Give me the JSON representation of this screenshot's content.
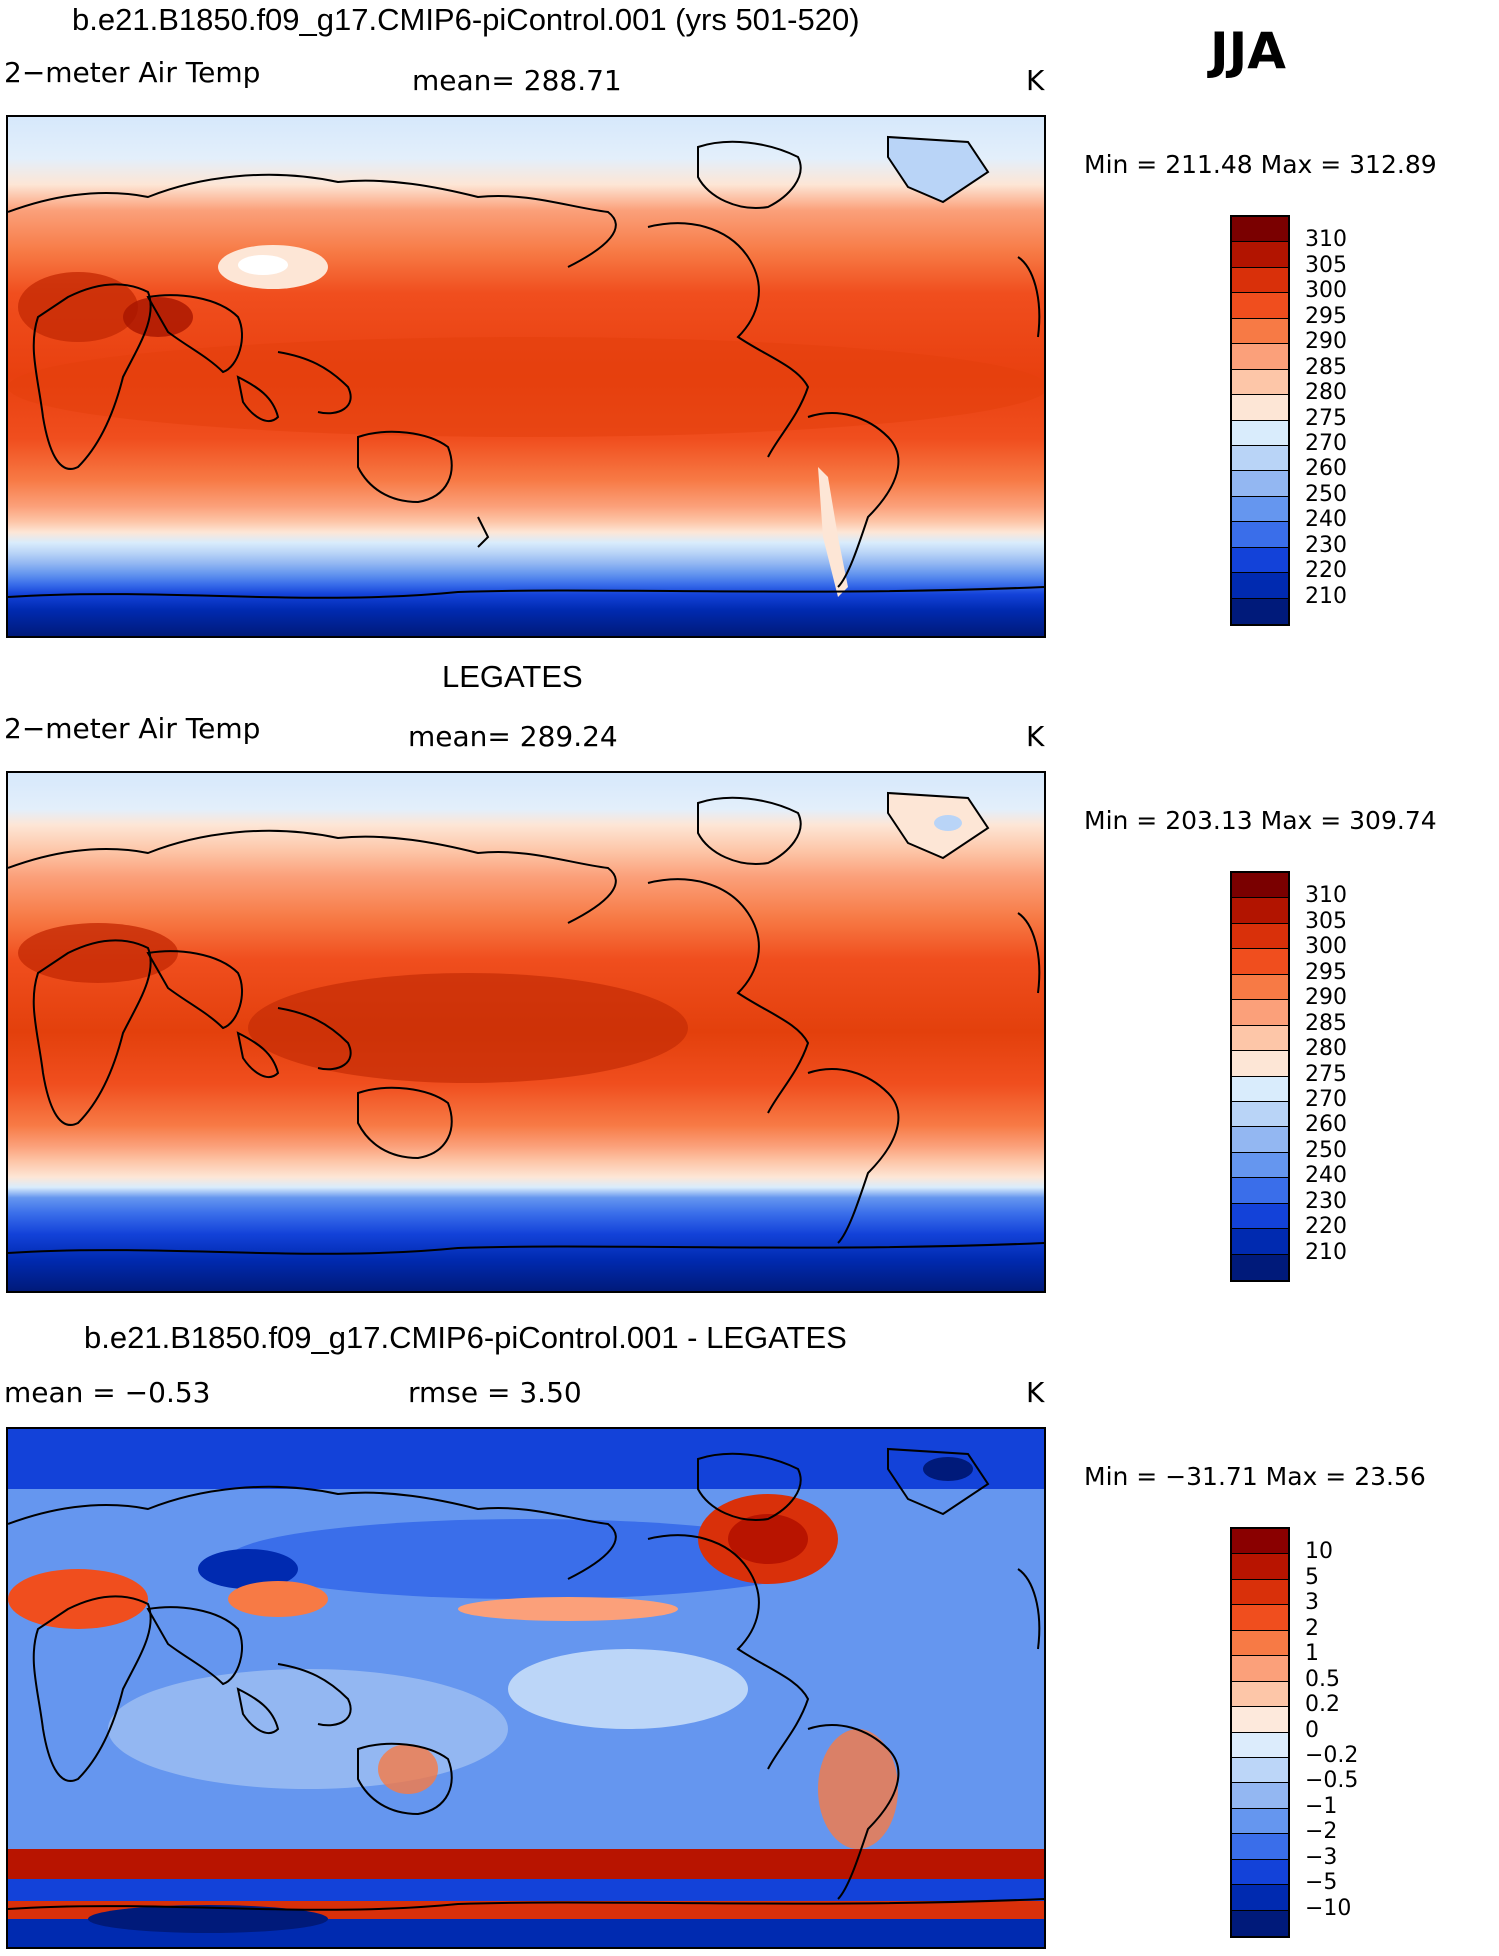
{
  "season": "JJA",
  "unit": "K",
  "panels": [
    {
      "title": "b.e21.B1850.f09_g17.CMIP6-piControl.001 (yrs 501-520)",
      "left_label": "2−meter Air Temp",
      "mid_label": "mean=  288.71",
      "minmax": "Min  =  211.48  Max  =  312.89",
      "colorbar_levels": [
        "310",
        "305",
        "300",
        "295",
        "290",
        "285",
        "280",
        "275",
        "270",
        "260",
        "250",
        "240",
        "230",
        "220",
        "210"
      ],
      "colorbar_colors": [
        "#7a0000",
        "#b21400",
        "#d9300a",
        "#f04e1e",
        "#f77a45",
        "#fba07a",
        "#fdc6a8",
        "#fde6d6",
        "#d9ecfc",
        "#b9d4f7",
        "#93b7f2",
        "#6596ef",
        "#3a6eea",
        "#1342d9",
        "#002ab0",
        "#001a7a"
      ]
    },
    {
      "title": "LEGATES",
      "left_label": "2−meter Air Temp",
      "mid_label": "mean=  289.24",
      "minmax": "Min  =  203.13  Max  =  309.74",
      "colorbar_levels": [
        "310",
        "305",
        "300",
        "295",
        "290",
        "285",
        "280",
        "275",
        "270",
        "260",
        "250",
        "240",
        "230",
        "220",
        "210"
      ],
      "colorbar_colors": [
        "#7a0000",
        "#b21400",
        "#d9300a",
        "#f04e1e",
        "#f77a45",
        "#fba07a",
        "#fdc6a8",
        "#fde6d6",
        "#d9ecfc",
        "#b9d4f7",
        "#93b7f2",
        "#6596ef",
        "#3a6eea",
        "#1342d9",
        "#002ab0",
        "#001a7a"
      ]
    },
    {
      "title": "b.e21.B1850.f09_g17.CMIP6-piControl.001 - LEGATES",
      "left_label": "mean  =    −0.53",
      "mid_label": "rmse  =     3.50",
      "minmax": "Min  =  −31.71  Max  =    23.56",
      "colorbar_levels": [
        "10",
        "5",
        "3",
        "2",
        "1",
        "0.5",
        "0.2",
        "0",
        "−0.2",
        "−0.5",
        "−1",
        "−2",
        "−3",
        "−5",
        "−10"
      ],
      "colorbar_colors": [
        "#8a0000",
        "#b81400",
        "#d9300a",
        "#f04e1e",
        "#f77a45",
        "#fba07a",
        "#fdc6a8",
        "#fde9dc",
        "#dcecfc",
        "#bcd6f8",
        "#93b7f2",
        "#6596ef",
        "#3a6eea",
        "#1342d9",
        "#002ab0",
        "#001a7a"
      ]
    }
  ]
}
